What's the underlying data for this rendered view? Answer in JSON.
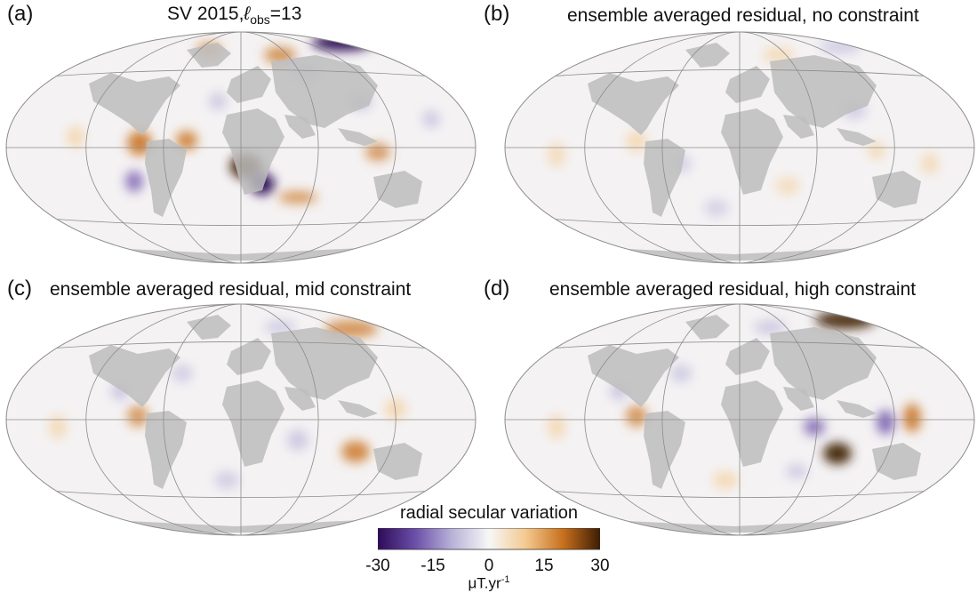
{
  "panels": [
    {
      "label": "(a)",
      "title_prefix": "SV 2015,",
      "title_ell": "ℓ",
      "title_sub": "obs",
      "title_suffix": "=13"
    },
    {
      "label": "(b)",
      "title": "ensemble averaged residual, no constraint"
    },
    {
      "label": "(c)",
      "title": "ensemble averaged residual, mid constraint"
    },
    {
      "label": "(d)",
      "title": "ensemble averaged residual, high constraint"
    }
  ],
  "colorbar": {
    "title": "radial secular variation",
    "ticks": [
      "-30",
      "-15",
      "0",
      "15",
      "30"
    ],
    "tick_values": [
      -30,
      -15,
      0,
      15,
      30
    ],
    "range": [
      -30,
      30
    ],
    "unit_base": "μT.yr",
    "unit_exp": "-1",
    "colors": [
      "#2d0b57",
      "#6a4ea8",
      "#b8b2d8",
      "#f7f7f7",
      "#f3c98f",
      "#c8701c",
      "#3d1d04"
    ]
  },
  "colors": {
    "land": "#bdbdbd",
    "graticule": "#8c8c8c",
    "ocean": "#f4f2f3"
  }
}
